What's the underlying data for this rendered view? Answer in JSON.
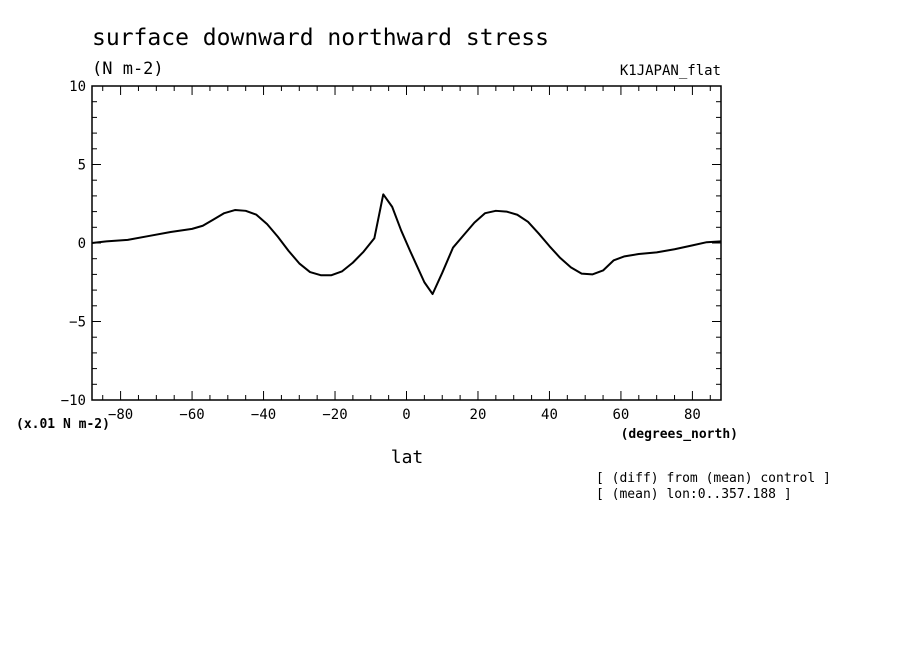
{
  "chart_data": {
    "type": "line",
    "title": "surface downward northward stress",
    "units": "(N m-2)",
    "dataset_label": "K1JAPAN_flat",
    "scale_note": "(x.01 N m-2)",
    "xlabel": "lat",
    "xunits": "(degrees_north)",
    "notes": [
      "[ (diff) from (mean) control ]",
      "[ (mean) lon:0..357.188 ]"
    ],
    "xlim": [
      -88,
      88
    ],
    "ylim": [
      -10,
      10
    ],
    "xticks": [
      -80,
      -60,
      -40,
      -20,
      0,
      20,
      40,
      60,
      80
    ],
    "yticks": [
      -10,
      -5,
      0,
      5,
      10
    ],
    "grid": false,
    "series": [
      {
        "x": [
          -88,
          -84,
          -78,
          -72,
          -66,
          -60,
          -57,
          -54,
          -51,
          -48,
          -45,
          -42,
          -39,
          -36,
          -33,
          -30,
          -27,
          -24,
          -21,
          -18,
          -15,
          -12,
          -9,
          -6.5,
          -4,
          -1.5,
          1,
          3,
          5,
          7.3,
          10,
          13,
          16,
          19,
          22,
          25,
          28,
          31,
          34,
          37,
          40,
          43,
          46,
          49,
          52,
          55,
          58,
          61,
          65,
          70,
          75,
          80,
          84,
          88
        ],
        "y": [
          0.0,
          0.1,
          0.2,
          0.45,
          0.7,
          0.9,
          1.1,
          1.5,
          1.9,
          2.1,
          2.05,
          1.8,
          1.2,
          0.4,
          -0.5,
          -1.3,
          -1.85,
          -2.05,
          -2.05,
          -1.8,
          -1.25,
          -0.55,
          0.3,
          3.1,
          2.3,
          0.8,
          -0.5,
          -1.5,
          -2.5,
          -3.25,
          -1.9,
          -0.3,
          0.5,
          1.3,
          1.9,
          2.05,
          2.0,
          1.8,
          1.35,
          0.6,
          -0.2,
          -0.95,
          -1.55,
          -1.95,
          -2.0,
          -1.75,
          -1.1,
          -0.85,
          -0.7,
          -0.6,
          -0.4,
          -0.15,
          0.05,
          0.1
        ]
      }
    ]
  }
}
